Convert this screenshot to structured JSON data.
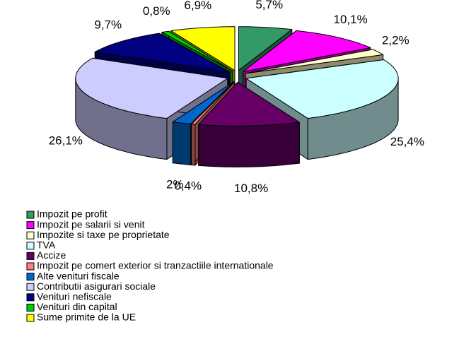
{
  "chart_data": {
    "type": "pie",
    "categories": [
      "Impozit pe profit",
      "Impozit pe salarii si venit",
      "Impozite si taxe pe proprietate",
      "TVA",
      "Accize",
      "Impozit pe comert exterior si tranzactiile internationale",
      "Alte venituri fiscale",
      "Contributii asigurari sociale",
      "Venituri nefiscale",
      "Venituri din capital",
      "Sume primite de la UE"
    ],
    "values": [
      5.7,
      10.1,
      2.2,
      25.4,
      10.8,
      0.4,
      2,
      26.1,
      9.7,
      0.8,
      6.9
    ],
    "value_labels": [
      "5,7%",
      "10,1%",
      "2,2%",
      "25,4%",
      "10,8%",
      "0,4%",
      "2%",
      "26,1%",
      "9,7%",
      "0,8%",
      "6,9%"
    ],
    "colors": [
      "#339966",
      "#ff00ff",
      "#ffffcc",
      "#ccffff",
      "#660066",
      "#ff8080",
      "#0066cc",
      "#ccccff",
      "#000080",
      "#00cc00",
      "#ffff00"
    ],
    "legend": "bottom-left"
  }
}
